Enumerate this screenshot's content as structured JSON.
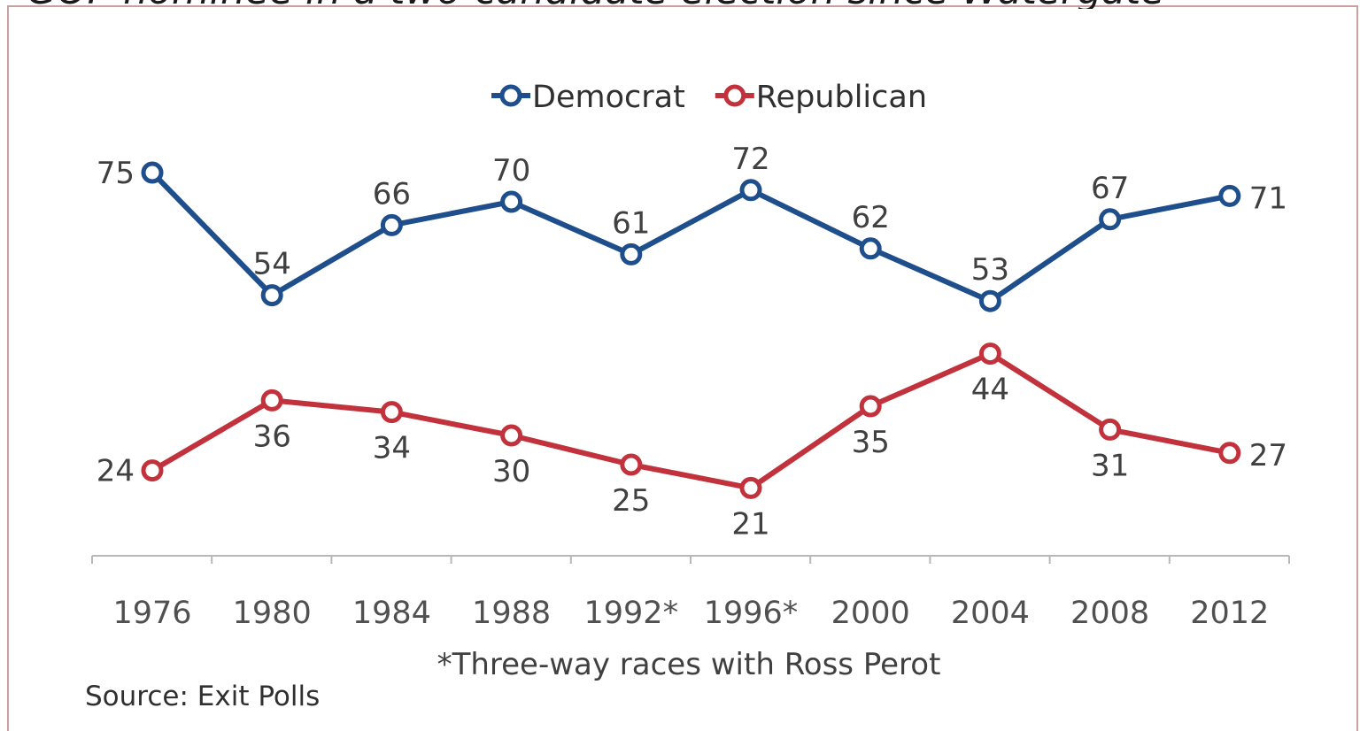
{
  "header": {
    "title_partial": "GOP nominee in a two-candidate election since Watergate"
  },
  "chart_data": {
    "type": "line",
    "categories": [
      "1976",
      "1980",
      "1984",
      "1988",
      "1992*",
      "1996*",
      "2000",
      "2004",
      "2008",
      "2012"
    ],
    "series": [
      {
        "name": "Democrat",
        "values": [
          75,
          54,
          66,
          70,
          61,
          72,
          62,
          53,
          67,
          71
        ],
        "color": "#1f4e8c"
      },
      {
        "name": "Republican",
        "values": [
          24,
          36,
          34,
          30,
          25,
          21,
          35,
          44,
          31,
          27
        ],
        "color": "#c2323c"
      }
    ],
    "legend_position": "top-center",
    "grid": false,
    "data_labels": true,
    "ylim": [
      10,
      80
    ]
  },
  "footnote": "*Three-way races with Ross Perot",
  "source": "Source: Exit Polls"
}
